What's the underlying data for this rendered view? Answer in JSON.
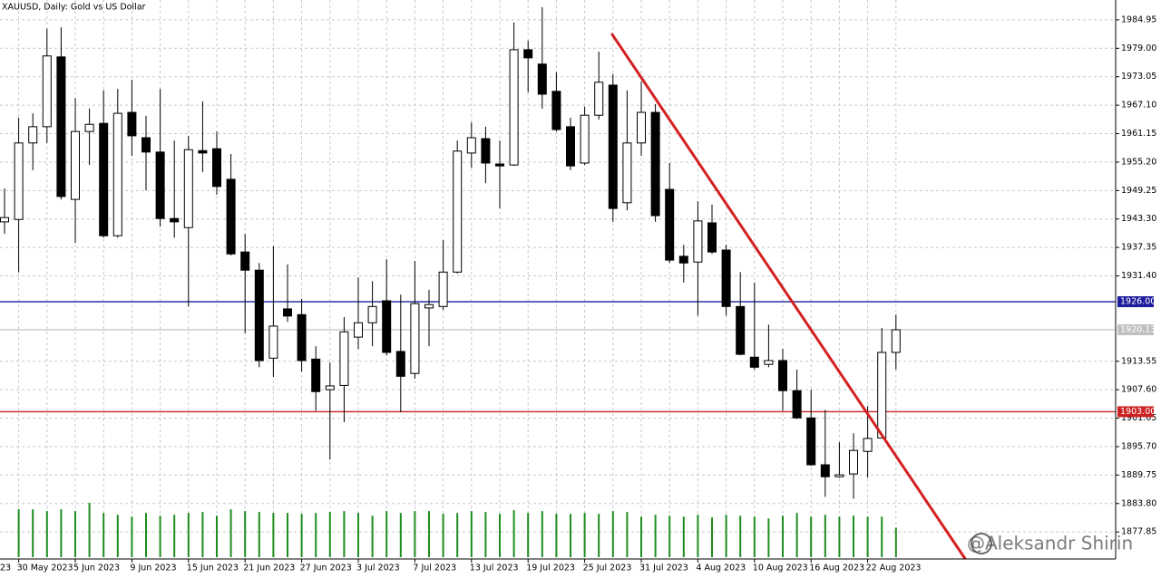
{
  "chart_data": {
    "type": "candlestick",
    "title": "XAUUSD, Daily:  Gold vs US Dollar",
    "cut_label": "23",
    "watermark": "@Aleksandr Shirin",
    "categories": [
      null,
      "30 May 2023",
      null,
      null,
      null,
      "5 Jun 2023",
      null,
      null,
      null,
      "9 Jun 2023",
      null,
      null,
      null,
      "15 Jun 2023",
      null,
      null,
      null,
      "21 Jun 2023",
      null,
      null,
      null,
      "27 Jun 2023",
      null,
      null,
      null,
      "3 Jul 2023",
      null,
      null,
      null,
      "7 Jul 2023",
      null,
      null,
      null,
      "13 Jul 2023",
      null,
      null,
      null,
      "19 Jul 2023",
      null,
      null,
      null,
      "25 Jul 2023",
      null,
      null,
      null,
      "31 Jul 2023",
      null,
      null,
      null,
      "4 Aug 2023",
      null,
      null,
      null,
      "10 Aug 2023",
      null,
      null,
      null,
      "16 Aug 2023",
      null,
      null,
      null,
      "22 Aug 2023",
      null,
      null
    ],
    "open": [
      1942.7,
      1943.2,
      1959.2,
      1962.6,
      1977.2,
      1947.4,
      1961.6,
      1963.3,
      1939.8,
      1965.6,
      1960.3,
      1957.3,
      1943.4,
      1941.5,
      1957.6,
      1958.0,
      1951.6,
      1936.4,
      1932.6,
      1914.2,
      1924.5,
      1923.3,
      1914.0,
      1907.6,
      1908.5,
      1918.6,
      1921.6,
      1926.2,
      1915.6,
      1911.0,
      1924.7,
      1925.0,
      1932.2,
      1957.1,
      1960.1,
      1954.8,
      1954.6,
      1978.7,
      1975.7,
      1970.0,
      1962.6,
      1955.0,
      1965.0,
      1971.3,
      1946.7,
      1959.2,
      1965.6,
      1949.5,
      1935.5,
      1934.3,
      1942.5,
      1936.8,
      1925.0,
      1914.4,
      1912.9,
      1913.7,
      1907.4,
      1901.7,
      1891.9,
      1889.4,
      1890.0,
      1894.7,
      1897.5,
      1915.4
    ],
    "high": [
      1949.7,
      1964.5,
      1965.4,
      1983.1,
      1983.4,
      1968.6,
      1966.4,
      1970.2,
      1970.5,
      1972.4,
      1964.9,
      1970.5,
      1959.7,
      1960.7,
      1967.9,
      1961.6,
      1956.9,
      1940.2,
      1934.1,
      1937.6,
      1933.8,
      1926.6,
      1916.7,
      1913.3,
      1922.8,
      1931.1,
      1930.3,
      1934.9,
      1927.5,
      1934.5,
      1928.5,
      1938.9,
      1959.7,
      1963.5,
      1962.6,
      1959.7,
      1984.4,
      1980.6,
      1987.6,
      1974.0,
      1964.5,
      1966.8,
      1978.3,
      1973.6,
      1970.2,
      1972.1,
      1967.3,
      1955.0,
      1937.9,
      1947.0,
      1946.3,
      1937.9,
      1932.2,
      1930.0,
      1921.2,
      1916.1,
      1911.8,
      1907.6,
      1903.4,
      1896.6,
      1898.5,
      1904.2,
      1920.5,
      1923.3
    ],
    "low": [
      1940.2,
      1932.2,
      1953.5,
      1959.2,
      1947.4,
      1938.3,
      1954.6,
      1939.4,
      1939.4,
      1956.5,
      1949.3,
      1941.7,
      1939.4,
      1925.0,
      1953.1,
      1948.4,
      1935.7,
      1919.4,
      1912.3,
      1910.3,
      1921.8,
      1911.4,
      1903.2,
      1893.0,
      1900.8,
      1916.1,
      1916.7,
      1914.8,
      1902.9,
      1909.9,
      1916.7,
      1924.3,
      1931.9,
      1954.0,
      1950.8,
      1945.5,
      1954.4,
      1969.8,
      1966.4,
      1961.6,
      1953.5,
      1954.6,
      1964.1,
      1942.7,
      1945.1,
      1956.5,
      1942.7,
      1934.1,
      1930.0,
      1923.1,
      1936.0,
      1923.1,
      1914.8,
      1911.8,
      1912.3,
      1903.2,
      1901.5,
      1891.7,
      1885.2,
      1889.2,
      1884.8,
      1889.2,
      1897.4,
      1911.8
    ],
    "close": [
      1943.6,
      1959.2,
      1962.6,
      1977.4,
      1948.0,
      1961.6,
      1963.1,
      1939.8,
      1965.4,
      1960.7,
      1957.3,
      1943.4,
      1942.7,
      1957.8,
      1957.1,
      1950.1,
      1936.0,
      1932.6,
      1913.7,
      1920.9,
      1923.0,
      1913.7,
      1907.2,
      1908.4,
      1919.7,
      1921.6,
      1925.0,
      1915.4,
      1910.4,
      1925.6,
      1925.4,
      1932.2,
      1957.5,
      1960.3,
      1955.0,
      1954.4,
      1978.7,
      1977.0,
      1969.4,
      1962.0,
      1954.4,
      1965.0,
      1971.9,
      1945.5,
      1959.2,
      1965.6,
      1944.0,
      1934.7,
      1934.1,
      1942.9,
      1936.4,
      1925.0,
      1915.0,
      1912.3,
      1913.7,
      1907.4,
      1901.7,
      1891.9,
      1889.4,
      1889.8,
      1894.9,
      1897.4,
      1915.4,
      1920.13
    ],
    "volume": [
      null,
      52,
      52,
      50,
      52,
      50,
      59,
      48,
      46,
      44,
      48,
      45,
      46,
      48,
      49,
      45,
      52,
      50,
      49,
      48,
      48,
      47,
      48,
      49,
      50,
      48,
      45,
      50,
      48,
      50,
      50,
      47,
      48,
      50,
      49,
      47,
      51,
      48,
      50,
      47,
      47,
      48,
      47,
      50,
      49,
      44,
      46,
      45,
      44,
      46,
      43,
      46,
      45,
      44,
      42,
      45,
      48,
      44,
      46,
      44,
      45,
      44,
      44,
      32
    ],
    "up_color": "#ffffff",
    "down_color": "#000000",
    "volume_color": "#1e8c1e",
    "ylim": [
      1872.2,
      1989.1
    ],
    "yticks": [
      {
        "value": 1984.95,
        "label": "1984.95"
      },
      {
        "value": 1979,
        "label": "1979.00"
      },
      {
        "value": 1973.05,
        "label": "1973.05"
      },
      {
        "value": 1967.1,
        "label": "1967.10"
      },
      {
        "value": 1961.15,
        "label": "1961.15"
      },
      {
        "value": 1955.2,
        "label": "1955.20"
      },
      {
        "value": 1949.25,
        "label": "1949.25"
      },
      {
        "value": 1943.3,
        "label": "1943.30"
      },
      {
        "value": 1937.35,
        "label": "1937.35"
      },
      {
        "value": 1931.4,
        "label": "1931.40"
      },
      {
        "value": 1913.55,
        "label": "1913.55"
      },
      {
        "value": 1907.6,
        "label": "1907.60"
      },
      {
        "value": 1901.65,
        "label": "1901.65"
      },
      {
        "value": 1895.7,
        "label": "1895.70"
      },
      {
        "value": 1889.75,
        "label": "1889.75"
      },
      {
        "value": 1883.8,
        "label": "1883.80"
      },
      {
        "value": 1877.85,
        "label": "1877.85"
      }
    ],
    "grid": true,
    "levels": [
      {
        "value": 1926,
        "label": "1926.00",
        "color": "#1c1c9c"
      },
      {
        "value": 1920.13,
        "label": "1920.13",
        "color": "#c0c0c0"
      },
      {
        "value": 1903,
        "label": "1903.00",
        "color": "#cc2222"
      }
    ],
    "trendline": {
      "x": [
        42.9,
        67.9
      ],
      "values": [
        1982.1,
        1872.2
      ],
      "color": "#d42020"
    }
  }
}
